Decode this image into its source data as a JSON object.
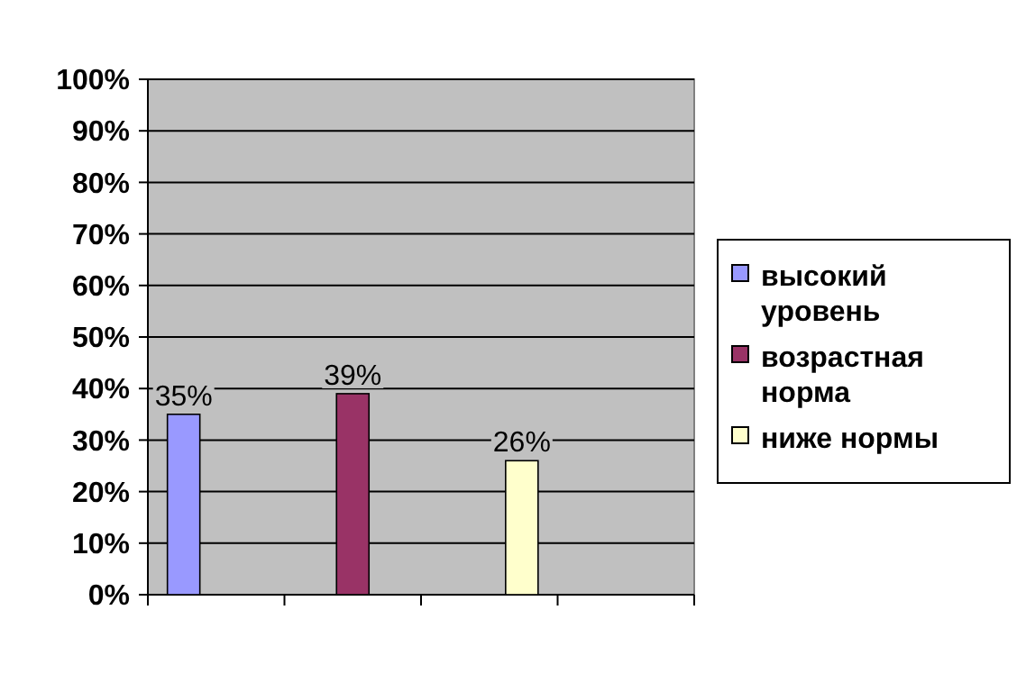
{
  "chart_data": {
    "type": "bar",
    "categories": [
      null,
      null,
      null,
      null
    ],
    "series": [
      {
        "name": "высокий уровень",
        "color": "#9999ff",
        "values": [
          35,
          null,
          null,
          null
        ],
        "value_labels": [
          "35%",
          null,
          null,
          null
        ]
      },
      {
        "name": "возрастная норма",
        "color": "#993366",
        "values": [
          null,
          39,
          null,
          null
        ],
        "value_labels": [
          null,
          "39%",
          null,
          null
        ]
      },
      {
        "name": "ниже нормы",
        "color": "#ffffcc",
        "values": [
          null,
          null,
          26,
          null
        ],
        "value_labels": [
          null,
          null,
          "26%",
          null
        ]
      }
    ],
    "ylim": [
      0,
      100
    ],
    "yticks": [
      {
        "value": 0,
        "label": "0%"
      },
      {
        "value": 10,
        "label": "10%"
      },
      {
        "value": 20,
        "label": "20%"
      },
      {
        "value": 30,
        "label": "30%"
      },
      {
        "value": 40,
        "label": "40%"
      },
      {
        "value": 50,
        "label": "50%"
      },
      {
        "value": 60,
        "label": "60%"
      },
      {
        "value": 70,
        "label": "70%"
      },
      {
        "value": 80,
        "label": "80%"
      },
      {
        "value": 90,
        "label": "90%"
      },
      {
        "value": 100,
        "label": "100%"
      }
    ],
    "grid": "y",
    "legend": "right"
  }
}
